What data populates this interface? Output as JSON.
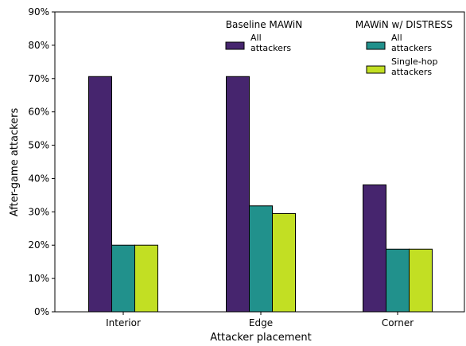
{
  "chart_data": {
    "type": "bar",
    "categories": [
      "Interior",
      "Edge",
      "Corner"
    ],
    "series": [
      {
        "name": "All attackers",
        "values": [
          70.6,
          70.6,
          38.1
        ],
        "color": "#46256e"
      },
      {
        "name": "All attackers",
        "values": [
          20.0,
          31.8,
          18.8
        ],
        "color": "#21918c"
      },
      {
        "name": "Single-hop attackers",
        "values": [
          20.0,
          29.5,
          18.8
        ],
        "color": "#c2df23"
      }
    ],
    "ylabel": "After-game attackers",
    "xlabel": "Attacker placement",
    "ylim": [
      0,
      90
    ],
    "yticks": [
      "0%",
      "10%",
      "20%",
      "30%",
      "40%",
      "50%",
      "60%",
      "70%",
      "80%",
      "90%"
    ],
    "grid": false,
    "legend": {
      "placement": "top-right",
      "groups": [
        {
          "title": "Baseline MAWiN",
          "entries": [
            {
              "line1": "All",
              "line2": "attackers",
              "series": 0
            }
          ]
        },
        {
          "title": "MAWiN w/ DISTRESS",
          "entries": [
            {
              "line1": "All",
              "line2": "attackers",
              "series": 1
            },
            {
              "line1": "Single-hop",
              "line2": "attackers",
              "series": 2
            }
          ]
        }
      ]
    }
  }
}
